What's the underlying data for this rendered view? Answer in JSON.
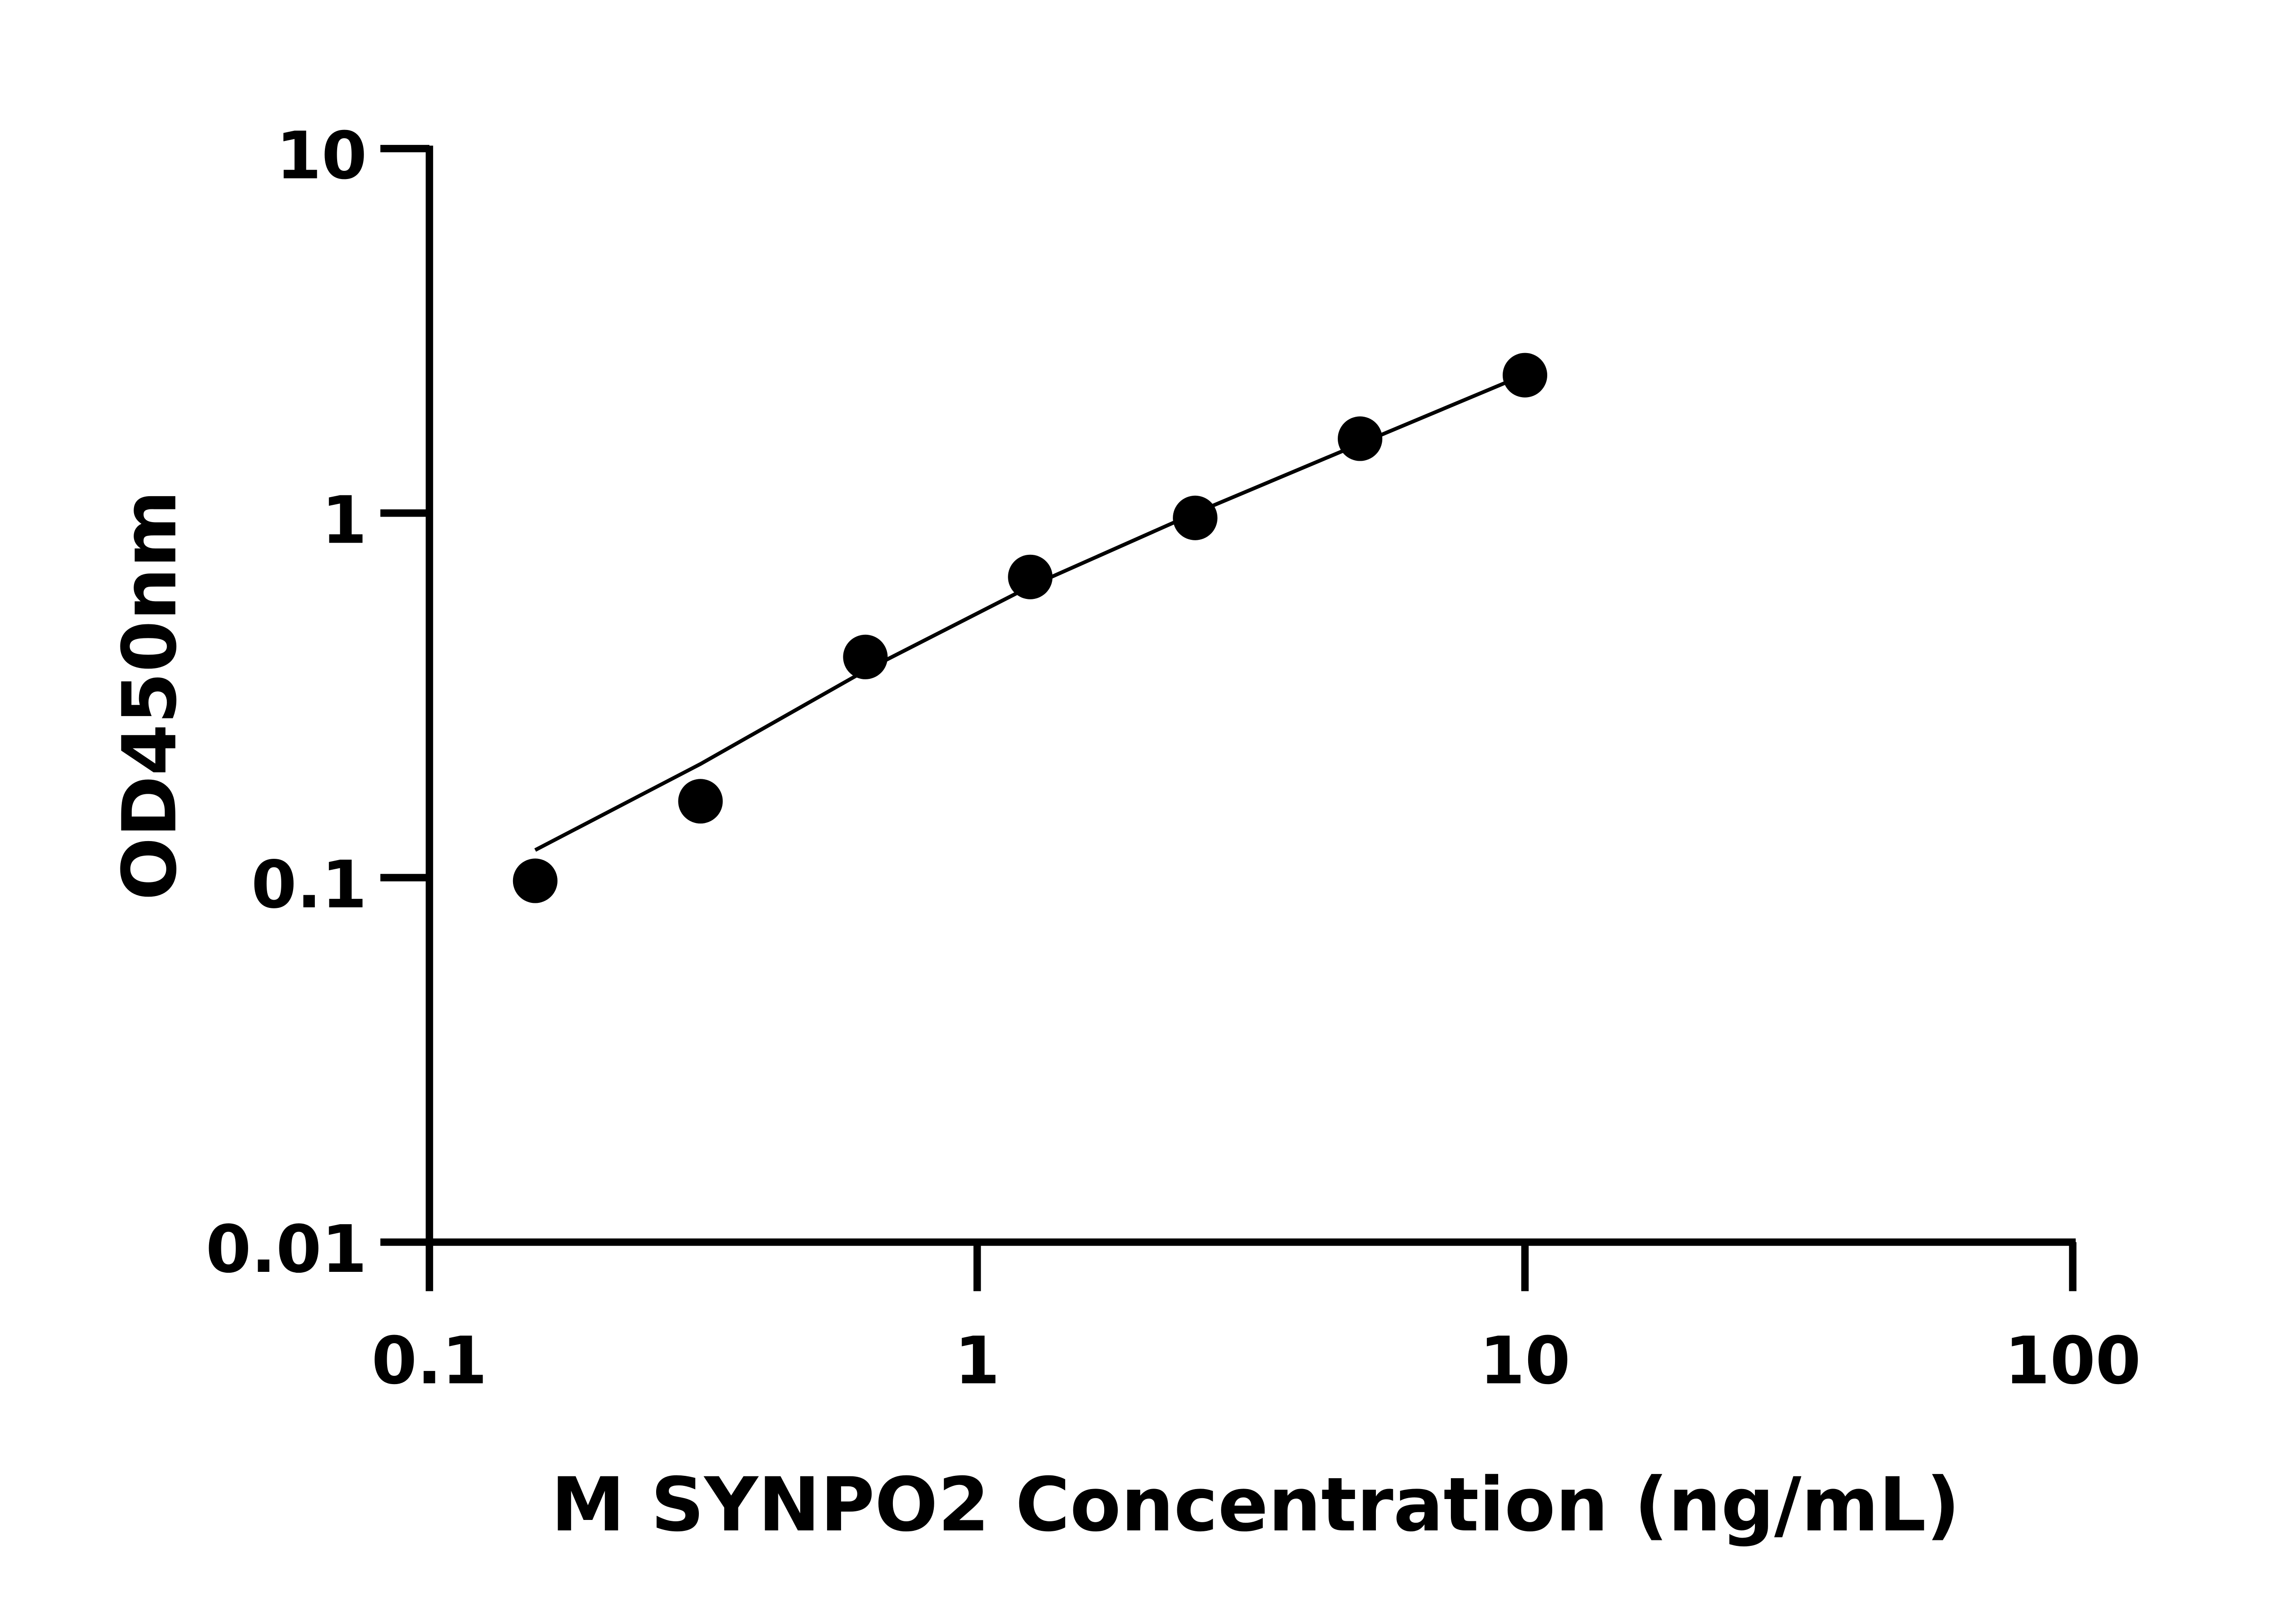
{
  "chart_data": {
    "type": "scatter",
    "title": "",
    "xlabel": "M SYNPO2 Concentration (ng/mL)",
    "ylabel": "OD450nm",
    "x_scale": "log",
    "y_scale": "log",
    "xlim": [
      0.1,
      100
    ],
    "ylim": [
      0.01,
      10
    ],
    "x_ticks": [
      "0.1",
      "1",
      "10",
      "100"
    ],
    "y_ticks": [
      "0.01",
      "0.1",
      "1",
      "10"
    ],
    "grid": false,
    "points": [
      {
        "x": 0.156,
        "y": 0.098
      },
      {
        "x": 0.3125,
        "y": 0.162
      },
      {
        "x": 0.625,
        "y": 0.403
      },
      {
        "x": 1.25,
        "y": 0.668
      },
      {
        "x": 2.5,
        "y": 0.97
      },
      {
        "x": 5,
        "y": 1.6
      },
      {
        "x": 10,
        "y": 2.39
      }
    ],
    "fit_curve": [
      {
        "x": 0.156,
        "y": 0.119
      },
      {
        "x": 0.3125,
        "y": 0.205
      },
      {
        "x": 0.625,
        "y": 0.37
      },
      {
        "x": 1.25,
        "y": 0.63
      },
      {
        "x": 2.5,
        "y": 1.0
      },
      {
        "x": 5,
        "y": 1.55
      },
      {
        "x": 10,
        "y": 2.4
      }
    ],
    "color": "#000000"
  }
}
